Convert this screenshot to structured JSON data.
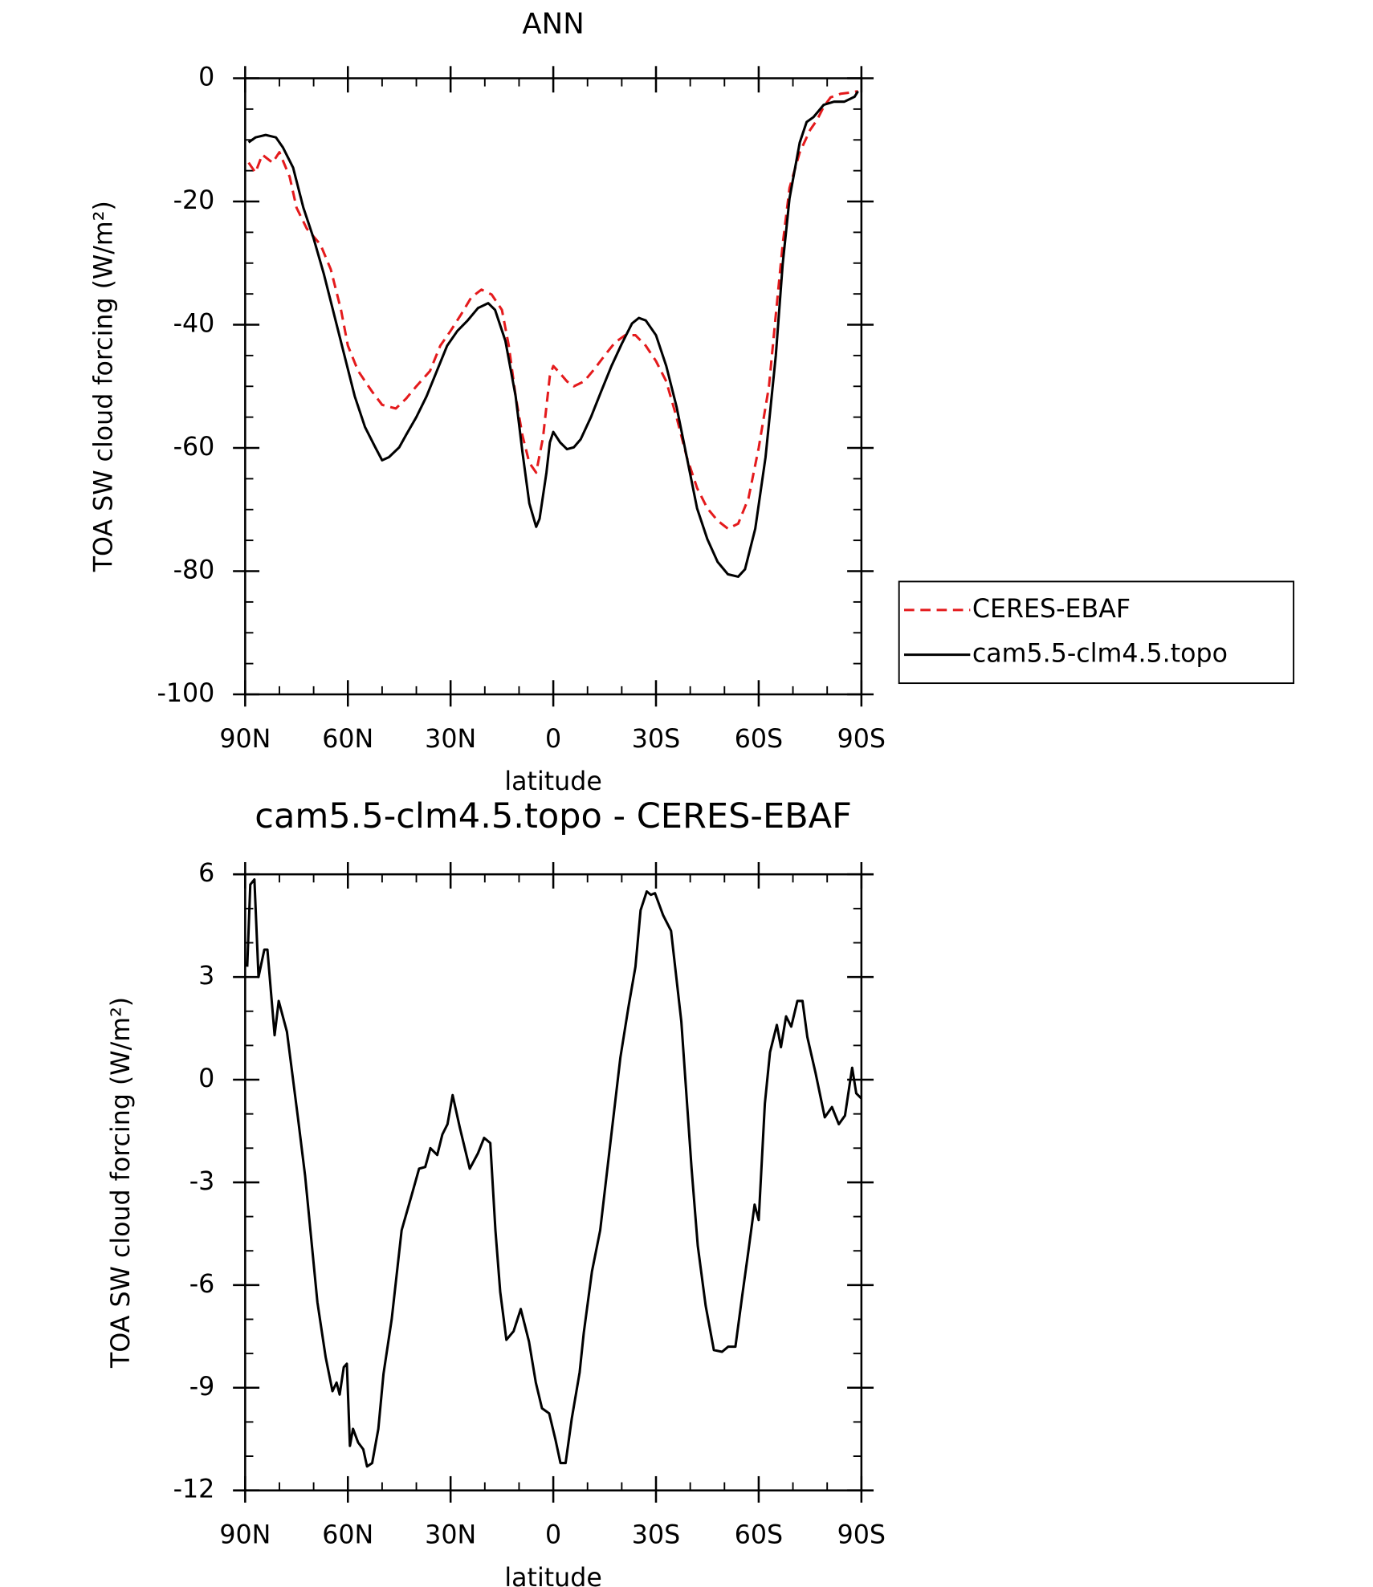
{
  "chart_data": [
    {
      "type": "line",
      "title": "ANN",
      "x_label": "latitude",
      "y_label": "TOA SW cloud forcing (W/m²)",
      "xlim": [
        90,
        -90
      ],
      "xticks": [
        {
          "value": 90,
          "label": "90N"
        },
        {
          "value": 60,
          "label": "60N"
        },
        {
          "value": 30,
          "label": "30N"
        },
        0,
        {
          "value": -30,
          "label": "30S"
        },
        {
          "value": -60,
          "label": "60S"
        },
        {
          "value": -90,
          "label": "90S"
        }
      ],
      "ylim": [
        -100,
        0
      ],
      "yticks": [
        -100,
        -80,
        -60,
        -40,
        -20,
        0
      ],
      "legend": "right",
      "series": [
        {
          "name": "CERES-EBAF",
          "color": "#e41a1c",
          "dash": true,
          "x": [
            89,
            87,
            85,
            82,
            80,
            77,
            75,
            72,
            68,
            65,
            62,
            60,
            57,
            53,
            50,
            46,
            43,
            40,
            36,
            33,
            30,
            27,
            24,
            21,
            18,
            15,
            13,
            11,
            9,
            7,
            5,
            3,
            1,
            0,
            -2,
            -4,
            -6,
            -9,
            -12,
            -15,
            -18,
            -21,
            -24,
            -27,
            -30,
            -33,
            -36,
            -39,
            -42,
            -45,
            -48,
            -51,
            -54,
            -57,
            -60,
            -63,
            -65,
            -67,
            -69,
            -72,
            -75,
            -77,
            -79,
            -81,
            -84,
            -87,
            -89
          ],
          "values": [
            -13.7,
            -15.3,
            -12.4,
            -13.7,
            -12,
            -16,
            -21,
            -24.4,
            -27,
            -31,
            -37.6,
            -43.4,
            -47.5,
            -50.8,
            -53,
            -53.6,
            -52,
            -50,
            -47.5,
            -43.4,
            -41,
            -38.4,
            -35.6,
            -34.3,
            -35.1,
            -37.6,
            -43.4,
            -51.6,
            -58,
            -62.4,
            -64,
            -58.3,
            -48.3,
            -46.7,
            -47.9,
            -49.2,
            -50,
            -49.2,
            -47.2,
            -45,
            -42.9,
            -41.7,
            -41.7,
            -43.4,
            -45.9,
            -49.2,
            -55,
            -61.5,
            -66.5,
            -69.8,
            -71.8,
            -73.1,
            -72.3,
            -68.2,
            -60,
            -50,
            -38.4,
            -27,
            -17.8,
            -12,
            -8.4,
            -6.8,
            -4.6,
            -3.1,
            -2.5,
            -2.3,
            -2.1
          ]
        },
        {
          "name": "cam5.5-clm4.5.topo",
          "color": "#000000",
          "dash": false,
          "x": [
            89,
            87,
            84,
            81,
            79,
            76,
            73,
            70,
            67,
            64,
            61,
            58,
            55,
            52,
            50,
            48,
            45,
            43,
            40,
            37,
            34,
            31,
            28,
            25,
            22,
            19,
            17,
            14,
            11,
            9,
            7,
            5,
            4,
            2,
            1,
            0,
            -2,
            -4,
            -6,
            -8,
            -11,
            -14,
            -17,
            -20,
            -23,
            -25,
            -27,
            -30,
            -33,
            -36,
            -39,
            -42,
            -45,
            -48,
            -51,
            -54,
            -56,
            -59,
            -62,
            -65,
            -67,
            -69,
            -72,
            -74,
            -76,
            -79,
            -82,
            -85,
            -88,
            -89
          ],
          "values": [
            -10.4,
            -9.6,
            -9.2,
            -9.6,
            -11.2,
            -14.5,
            -21,
            -26,
            -31.8,
            -38.4,
            -45,
            -51.6,
            -56.6,
            -59.9,
            -62,
            -61.5,
            -59.9,
            -57.9,
            -55,
            -51.6,
            -47.5,
            -43.4,
            -41,
            -39.3,
            -37.3,
            -36.5,
            -37.6,
            -42.6,
            -51.6,
            -60.7,
            -69,
            -72.8,
            -71.5,
            -64,
            -59.1,
            -57.4,
            -59.1,
            -60.2,
            -59.9,
            -58.6,
            -55,
            -50.8,
            -46.7,
            -43.1,
            -39.8,
            -38.9,
            -39.3,
            -41.7,
            -46.7,
            -53.3,
            -61.5,
            -69.8,
            -74.8,
            -78.5,
            -80.5,
            -80.9,
            -79.7,
            -73.1,
            -61.5,
            -45,
            -30.2,
            -19.5,
            -10.4,
            -7.1,
            -6.3,
            -4.3,
            -3.8,
            -3.8,
            -3,
            -2.1
          ]
        }
      ]
    },
    {
      "type": "line",
      "title": "cam5.5-clm4.5.topo - CERES-EBAF",
      "x_label": "latitude",
      "y_label": "TOA SW cloud forcing (W/m²)",
      "xlim": [
        90,
        -90
      ],
      "xticks": [
        {
          "value": 90,
          "label": "90N"
        },
        {
          "value": 60,
          "label": "60N"
        },
        {
          "value": 30,
          "label": "30N"
        },
        0,
        {
          "value": -30,
          "label": "30S"
        },
        {
          "value": -60,
          "label": "60S"
        },
        {
          "value": -90,
          "label": "90S"
        }
      ],
      "ylim": [
        -12,
        6
      ],
      "yticks": [
        -12,
        -9,
        -6,
        -3,
        0,
        3,
        6
      ],
      "color": "#000000",
      "x": [
        89.4,
        88.5,
        87.3,
        86.1,
        84.4,
        83.5,
        81.4,
        80.2,
        77.8,
        74.6,
        72.5,
        68.9,
        66.5,
        64.5,
        63.3,
        62.4,
        61.2,
        60.3,
        59.4,
        58.5,
        57,
        55.5,
        54.4,
        52.9,
        51.1,
        49.6,
        47.2,
        44.3,
        41.3,
        39.2,
        37.4,
        35.9,
        33.9,
        32.4,
        30.9,
        29.4,
        27.3,
        24.4,
        22,
        20.2,
        18.4,
        16.9,
        15.5,
        13.7,
        11.6,
        9.5,
        7.1,
        5.1,
        3.3,
        1.2,
        -0.6,
        -2.1,
        -3.6,
        -5.4,
        -7.7,
        -8.9,
        -11.3,
        -13.7,
        -17.2,
        -19.6,
        -22,
        -24,
        -25.5,
        -27.3,
        -28.5,
        -29.7,
        -32.1,
        -34.4,
        -37.4,
        -40.4,
        -42.2,
        -44.5,
        -46.9,
        -49.3,
        -51.1,
        -53.2,
        -55.2,
        -57,
        -58.8,
        -60,
        -61.8,
        -63.3,
        -65.3,
        -66.5,
        -68,
        -69.5,
        -71.3,
        -72.8,
        -74.2,
        -76.6,
        -79.3,
        -81.4,
        -83.4,
        -85.2,
        -87.3,
        -88.5,
        -90
      ],
      "values": [
        3.3,
        5.7,
        5.85,
        3.0,
        3.8,
        3.8,
        1.3,
        2.3,
        1.4,
        -1.1,
        -2.8,
        -6.5,
        -8.1,
        -9.1,
        -8.85,
        -9.2,
        -8.4,
        -8.3,
        -10.7,
        -10.2,
        -10.6,
        -10.8,
        -11.3,
        -11.2,
        -10.2,
        -8.6,
        -7.0,
        -4.4,
        -3.35,
        -2.6,
        -2.55,
        -2.0,
        -2.2,
        -1.6,
        -1.3,
        -0.45,
        -1.4,
        -2.6,
        -2.15,
        -1.7,
        -1.85,
        -4.4,
        -6.2,
        -7.6,
        -7.35,
        -6.7,
        -7.65,
        -8.85,
        -9.6,
        -9.75,
        -10.5,
        -11.2,
        -11.2,
        -9.9,
        -8.55,
        -7.4,
        -5.6,
        -4.4,
        -1.4,
        0.65,
        2.15,
        3.3,
        4.95,
        5.5,
        5.4,
        5.45,
        4.8,
        4.35,
        1.7,
        -2.6,
        -4.85,
        -6.6,
        -7.9,
        -7.95,
        -7.8,
        -7.8,
        -6.3,
        -5.0,
        -3.65,
        -4.1,
        -0.7,
        0.8,
        1.6,
        0.95,
        1.85,
        1.55,
        2.3,
        2.3,
        1.25,
        0.2,
        -1.1,
        -0.8,
        -1.3,
        -1.05,
        0.35,
        -0.4,
        -0.55
      ]
    }
  ]
}
